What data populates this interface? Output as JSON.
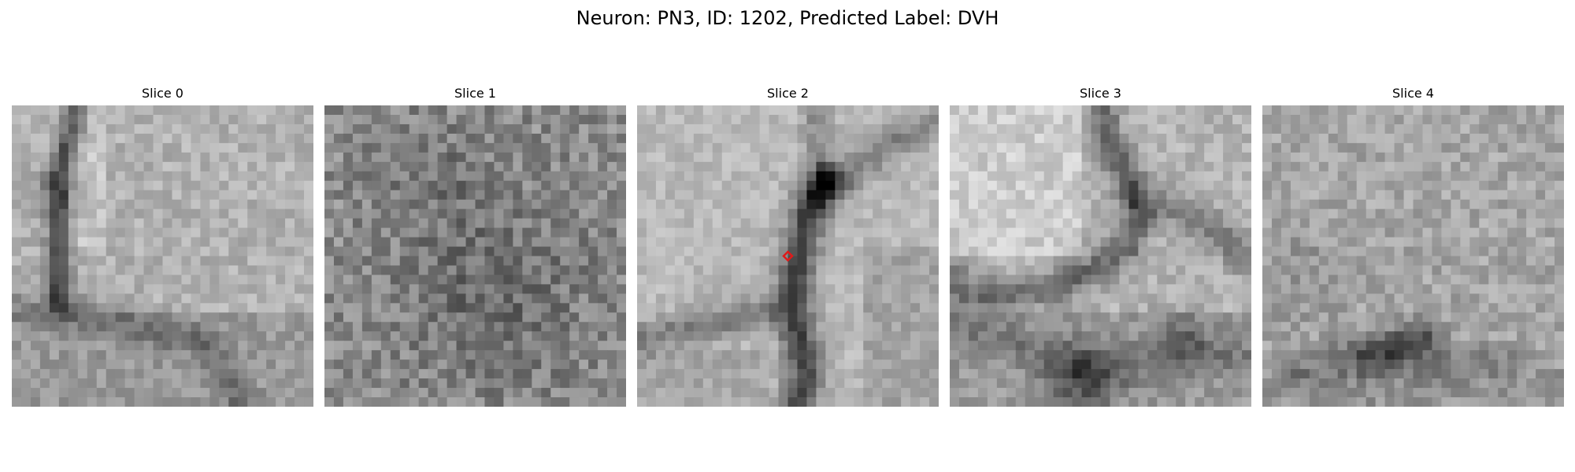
{
  "figure": {
    "title": "Neuron: PN3, ID: 1202, Predicted Label: DVH"
  },
  "panels": [
    {
      "title": "Slice 0",
      "seed": 11,
      "base": 178,
      "noise": 44,
      "pattern": "slice0"
    },
    {
      "title": "Slice 1",
      "seed": 23,
      "base": 138,
      "noise": 70,
      "pattern": "slice1"
    },
    {
      "title": "Slice 2",
      "seed": 37,
      "base": 185,
      "noise": 36,
      "pattern": "slice2"
    },
    {
      "title": "Slice 3",
      "seed": 53,
      "base": 180,
      "noise": 44,
      "pattern": "slice3"
    },
    {
      "title": "Slice 4",
      "seed": 71,
      "base": 166,
      "noise": 52,
      "pattern": "slice4"
    }
  ],
  "marker": {
    "panel": 2,
    "shape": "diamond",
    "color": "#e01a1a"
  },
  "colormap": "gray"
}
